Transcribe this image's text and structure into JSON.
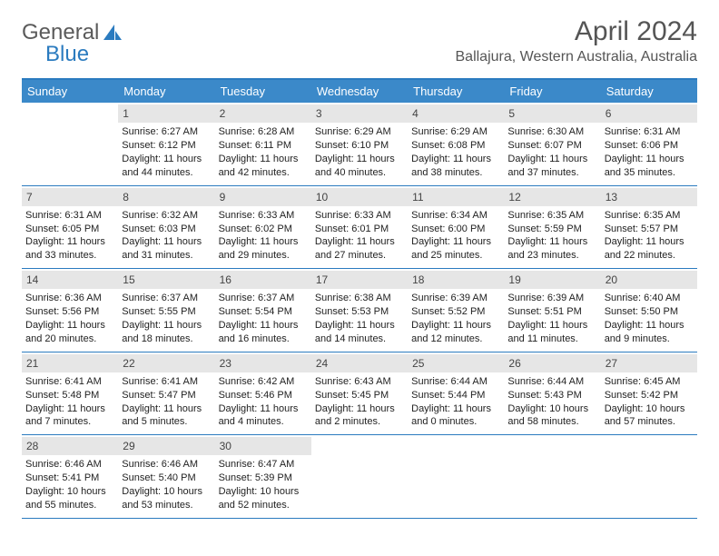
{
  "logo": {
    "text1": "General",
    "text2": "Blue"
  },
  "title": "April 2024",
  "subtitle": "Ballajura, Western Australia, Australia",
  "colors": {
    "header_bg": "#3b89c9",
    "border": "#2b7bbf",
    "daynum_bg": "#e6e6e6",
    "text": "#333333",
    "logo_gray": "#5a5a5a",
    "logo_blue": "#2b7bbf"
  },
  "dayNames": [
    "Sunday",
    "Monday",
    "Tuesday",
    "Wednesday",
    "Thursday",
    "Friday",
    "Saturday"
  ],
  "weeks": [
    [
      {
        "num": "",
        "sunrise": "",
        "sunset": "",
        "daylight1": "",
        "daylight2": ""
      },
      {
        "num": "1",
        "sunrise": "Sunrise: 6:27 AM",
        "sunset": "Sunset: 6:12 PM",
        "daylight1": "Daylight: 11 hours",
        "daylight2": "and 44 minutes."
      },
      {
        "num": "2",
        "sunrise": "Sunrise: 6:28 AM",
        "sunset": "Sunset: 6:11 PM",
        "daylight1": "Daylight: 11 hours",
        "daylight2": "and 42 minutes."
      },
      {
        "num": "3",
        "sunrise": "Sunrise: 6:29 AM",
        "sunset": "Sunset: 6:10 PM",
        "daylight1": "Daylight: 11 hours",
        "daylight2": "and 40 minutes."
      },
      {
        "num": "4",
        "sunrise": "Sunrise: 6:29 AM",
        "sunset": "Sunset: 6:08 PM",
        "daylight1": "Daylight: 11 hours",
        "daylight2": "and 38 minutes."
      },
      {
        "num": "5",
        "sunrise": "Sunrise: 6:30 AM",
        "sunset": "Sunset: 6:07 PM",
        "daylight1": "Daylight: 11 hours",
        "daylight2": "and 37 minutes."
      },
      {
        "num": "6",
        "sunrise": "Sunrise: 6:31 AM",
        "sunset": "Sunset: 6:06 PM",
        "daylight1": "Daylight: 11 hours",
        "daylight2": "and 35 minutes."
      }
    ],
    [
      {
        "num": "7",
        "sunrise": "Sunrise: 6:31 AM",
        "sunset": "Sunset: 6:05 PM",
        "daylight1": "Daylight: 11 hours",
        "daylight2": "and 33 minutes."
      },
      {
        "num": "8",
        "sunrise": "Sunrise: 6:32 AM",
        "sunset": "Sunset: 6:03 PM",
        "daylight1": "Daylight: 11 hours",
        "daylight2": "and 31 minutes."
      },
      {
        "num": "9",
        "sunrise": "Sunrise: 6:33 AM",
        "sunset": "Sunset: 6:02 PM",
        "daylight1": "Daylight: 11 hours",
        "daylight2": "and 29 minutes."
      },
      {
        "num": "10",
        "sunrise": "Sunrise: 6:33 AM",
        "sunset": "Sunset: 6:01 PM",
        "daylight1": "Daylight: 11 hours",
        "daylight2": "and 27 minutes."
      },
      {
        "num": "11",
        "sunrise": "Sunrise: 6:34 AM",
        "sunset": "Sunset: 6:00 PM",
        "daylight1": "Daylight: 11 hours",
        "daylight2": "and 25 minutes."
      },
      {
        "num": "12",
        "sunrise": "Sunrise: 6:35 AM",
        "sunset": "Sunset: 5:59 PM",
        "daylight1": "Daylight: 11 hours",
        "daylight2": "and 23 minutes."
      },
      {
        "num": "13",
        "sunrise": "Sunrise: 6:35 AM",
        "sunset": "Sunset: 5:57 PM",
        "daylight1": "Daylight: 11 hours",
        "daylight2": "and 22 minutes."
      }
    ],
    [
      {
        "num": "14",
        "sunrise": "Sunrise: 6:36 AM",
        "sunset": "Sunset: 5:56 PM",
        "daylight1": "Daylight: 11 hours",
        "daylight2": "and 20 minutes."
      },
      {
        "num": "15",
        "sunrise": "Sunrise: 6:37 AM",
        "sunset": "Sunset: 5:55 PM",
        "daylight1": "Daylight: 11 hours",
        "daylight2": "and 18 minutes."
      },
      {
        "num": "16",
        "sunrise": "Sunrise: 6:37 AM",
        "sunset": "Sunset: 5:54 PM",
        "daylight1": "Daylight: 11 hours",
        "daylight2": "and 16 minutes."
      },
      {
        "num": "17",
        "sunrise": "Sunrise: 6:38 AM",
        "sunset": "Sunset: 5:53 PM",
        "daylight1": "Daylight: 11 hours",
        "daylight2": "and 14 minutes."
      },
      {
        "num": "18",
        "sunrise": "Sunrise: 6:39 AM",
        "sunset": "Sunset: 5:52 PM",
        "daylight1": "Daylight: 11 hours",
        "daylight2": "and 12 minutes."
      },
      {
        "num": "19",
        "sunrise": "Sunrise: 6:39 AM",
        "sunset": "Sunset: 5:51 PM",
        "daylight1": "Daylight: 11 hours",
        "daylight2": "and 11 minutes."
      },
      {
        "num": "20",
        "sunrise": "Sunrise: 6:40 AM",
        "sunset": "Sunset: 5:50 PM",
        "daylight1": "Daylight: 11 hours",
        "daylight2": "and 9 minutes."
      }
    ],
    [
      {
        "num": "21",
        "sunrise": "Sunrise: 6:41 AM",
        "sunset": "Sunset: 5:48 PM",
        "daylight1": "Daylight: 11 hours",
        "daylight2": "and 7 minutes."
      },
      {
        "num": "22",
        "sunrise": "Sunrise: 6:41 AM",
        "sunset": "Sunset: 5:47 PM",
        "daylight1": "Daylight: 11 hours",
        "daylight2": "and 5 minutes."
      },
      {
        "num": "23",
        "sunrise": "Sunrise: 6:42 AM",
        "sunset": "Sunset: 5:46 PM",
        "daylight1": "Daylight: 11 hours",
        "daylight2": "and 4 minutes."
      },
      {
        "num": "24",
        "sunrise": "Sunrise: 6:43 AM",
        "sunset": "Sunset: 5:45 PM",
        "daylight1": "Daylight: 11 hours",
        "daylight2": "and 2 minutes."
      },
      {
        "num": "25",
        "sunrise": "Sunrise: 6:44 AM",
        "sunset": "Sunset: 5:44 PM",
        "daylight1": "Daylight: 11 hours",
        "daylight2": "and 0 minutes."
      },
      {
        "num": "26",
        "sunrise": "Sunrise: 6:44 AM",
        "sunset": "Sunset: 5:43 PM",
        "daylight1": "Daylight: 10 hours",
        "daylight2": "and 58 minutes."
      },
      {
        "num": "27",
        "sunrise": "Sunrise: 6:45 AM",
        "sunset": "Sunset: 5:42 PM",
        "daylight1": "Daylight: 10 hours",
        "daylight2": "and 57 minutes."
      }
    ],
    [
      {
        "num": "28",
        "sunrise": "Sunrise: 6:46 AM",
        "sunset": "Sunset: 5:41 PM",
        "daylight1": "Daylight: 10 hours",
        "daylight2": "and 55 minutes."
      },
      {
        "num": "29",
        "sunrise": "Sunrise: 6:46 AM",
        "sunset": "Sunset: 5:40 PM",
        "daylight1": "Daylight: 10 hours",
        "daylight2": "and 53 minutes."
      },
      {
        "num": "30",
        "sunrise": "Sunrise: 6:47 AM",
        "sunset": "Sunset: 5:39 PM",
        "daylight1": "Daylight: 10 hours",
        "daylight2": "and 52 minutes."
      },
      {
        "num": "",
        "sunrise": "",
        "sunset": "",
        "daylight1": "",
        "daylight2": ""
      },
      {
        "num": "",
        "sunrise": "",
        "sunset": "",
        "daylight1": "",
        "daylight2": ""
      },
      {
        "num": "",
        "sunrise": "",
        "sunset": "",
        "daylight1": "",
        "daylight2": ""
      },
      {
        "num": "",
        "sunrise": "",
        "sunset": "",
        "daylight1": "",
        "daylight2": ""
      }
    ]
  ]
}
